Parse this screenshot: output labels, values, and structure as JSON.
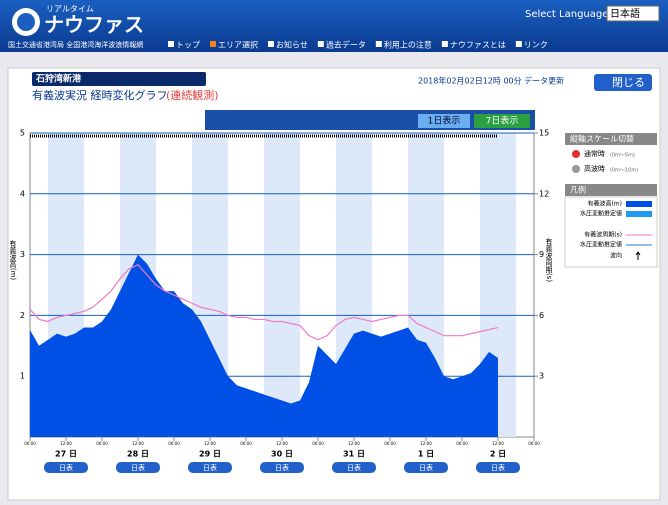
{
  "header": {
    "logo_small": "リアルタイム",
    "logo": "ナウファス",
    "subtitle": "国土交通省港湾局 全国港湾海洋波浪情報網",
    "language_label": "Select Language:",
    "language": "日本語",
    "nav": [
      "トップ",
      "エリア選択",
      "お知らせ",
      "過去データ",
      "利用上の注意",
      "ナウファスとは",
      "リンク"
    ]
  },
  "panel": {
    "station": "石狩湾新港",
    "heading": "有義波実況 経時変化グラフ",
    "mode": "(連続観測)",
    "updated": "2018年02月02日12時 00分 データ更新",
    "close": "閉じる",
    "tabs": [
      "1日表示",
      "7日表示"
    ]
  },
  "side": {
    "scale_title": "縦軸スケール切替",
    "scales": [
      {
        "name": "通常時",
        "range": "(0m〜5m)"
      },
      {
        "name": "高波時",
        "range": "(0m〜10m)"
      }
    ],
    "legend_title": "凡例",
    "estimate": "水圧変動推定値",
    "direction": "波向"
  },
  "chart_data": {
    "type": "area",
    "ylabel": "有義波高(m)",
    "y2label": "有義波周期(s)",
    "xlim": [
      0,
      168
    ],
    "xticks": [
      {
        "value": 0,
        "label": "00:00"
      },
      {
        "value": 12,
        "label": "12:00"
      },
      {
        "value": 24,
        "label": "00:00"
      },
      {
        "value": 36,
        "label": "12:00"
      },
      {
        "value": 48,
        "label": "00:00"
      },
      {
        "value": 60,
        "label": "12:00"
      },
      {
        "value": 72,
        "label": "00:00"
      },
      {
        "value": 84,
        "label": "12:00"
      },
      {
        "value": 96,
        "label": "00:00"
      },
      {
        "value": 108,
        "label": "12:00"
      },
      {
        "value": 120,
        "label": "00:00"
      },
      {
        "value": 132,
        "label": "12:00"
      },
      {
        "value": 144,
        "label": "00:00"
      },
      {
        "value": 156,
        "label": "12:00"
      },
      {
        "value": 168,
        "label": "00:00"
      }
    ],
    "days": [
      "27 日",
      "28 日",
      "29 日",
      "30 日",
      "31 日",
      "1 日",
      "2 日"
    ],
    "day_button": "日表",
    "ylim": [
      0,
      5
    ],
    "yticks": [
      1,
      2,
      3,
      4,
      5
    ],
    "y2lim": [
      0,
      15
    ],
    "y2ticks": [
      3,
      6,
      9,
      12,
      15
    ],
    "x": [
      0,
      3,
      6,
      9,
      12,
      15,
      18,
      21,
      24,
      27,
      30,
      33,
      36,
      39,
      42,
      45,
      48,
      51,
      54,
      57,
      60,
      63,
      66,
      69,
      72,
      75,
      78,
      81,
      84,
      87,
      90,
      93,
      96,
      99,
      102,
      105,
      108,
      111,
      114,
      117,
      120,
      123,
      126,
      129,
      132,
      135,
      138,
      141,
      144,
      147,
      150,
      153,
      156
    ],
    "series": [
      {
        "name": "有義波高(m)",
        "color": "#0050e6",
        "values": [
          1.76,
          1.5,
          1.6,
          1.7,
          1.65,
          1.7,
          1.8,
          1.8,
          1.9,
          2.1,
          2.4,
          2.7,
          3.0,
          2.85,
          2.6,
          2.4,
          2.4,
          2.2,
          2.1,
          1.9,
          1.6,
          1.3,
          1.0,
          0.85,
          0.8,
          0.75,
          0.7,
          0.65,
          0.6,
          0.55,
          0.6,
          0.9,
          1.5,
          1.35,
          1.2,
          1.45,
          1.7,
          1.75,
          1.7,
          1.65,
          1.7,
          1.75,
          1.8,
          1.6,
          1.55,
          1.3,
          1.0,
          0.95,
          1.0,
          1.05,
          1.2,
          1.4,
          1.3
        ]
      },
      {
        "name": "有義波周期(s)",
        "color": "#f07ac8",
        "axis": "y2",
        "values": [
          6.3,
          5.8,
          5.7,
          5.9,
          6.0,
          6.1,
          6.2,
          6.4,
          6.8,
          7.2,
          7.8,
          8.3,
          8.5,
          8.0,
          7.5,
          7.2,
          7.0,
          6.8,
          6.6,
          6.4,
          6.3,
          6.2,
          6.0,
          5.9,
          5.9,
          5.8,
          5.8,
          5.7,
          5.7,
          5.6,
          5.5,
          5.0,
          4.8,
          5.0,
          5.5,
          5.8,
          5.9,
          5.8,
          5.7,
          5.8,
          5.9,
          6.0,
          6.0,
          5.6,
          5.4,
          5.2,
          5.0,
          5.0,
          5.0,
          5.1,
          5.2,
          5.3,
          5.4
        ]
      }
    ]
  }
}
